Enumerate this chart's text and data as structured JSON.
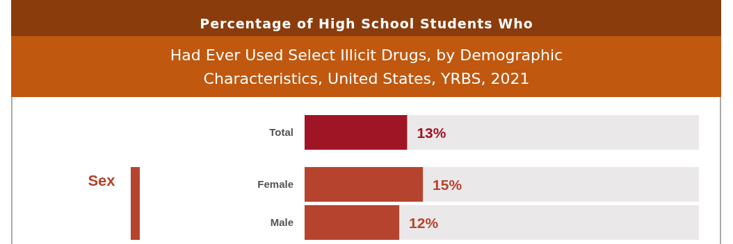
{
  "chart_data": {
    "type": "bar",
    "orientation": "horizontal",
    "title": "Percentage of High School Students Who",
    "subtitle": "Had Ever Used Select Illicit Drugs, by Demographic Characteristics, United States, YRBS, 2021",
    "categories": [
      "Total",
      "Female",
      "Male"
    ],
    "values": [
      13,
      15,
      12
    ],
    "colors": [
      "#a01526",
      "#b5432e",
      "#b5432e"
    ],
    "value_labels": [
      "13%",
      "15%",
      "12%"
    ],
    "xlim": [
      0,
      50
    ],
    "annotations": [
      "Sex"
    ]
  }
}
